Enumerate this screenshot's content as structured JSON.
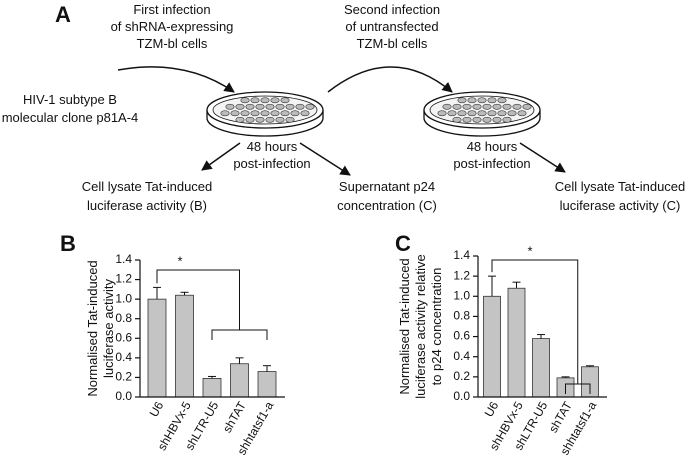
{
  "panel_a": {
    "label": "A",
    "first_infection": [
      "First infection",
      "of shRNA-expressing",
      "TZM-bl cells"
    ],
    "second_infection": [
      "Second infection",
      "of untransfected",
      "TZM-bl cells"
    ],
    "source": [
      "HIV-1 subtype B",
      "molecular clone p81A-4"
    ],
    "time_1": [
      "48 hours",
      "post-infection"
    ],
    "time_2": [
      "48 hours",
      "post-infection"
    ],
    "outputs": [
      [
        "Cell lysate Tat-induced",
        "luciferase activity (B)"
      ],
      [
        "Supernatant p24",
        "concentration (C)"
      ],
      [
        "Cell lysate Tat-induced",
        "luciferase activity (C)"
      ]
    ]
  },
  "chart_data": [
    {
      "type": "bar",
      "panel": "B",
      "ylabel": [
        "Normalised Tat-induced",
        "luciferase activity"
      ],
      "categories": [
        "U6",
        "shHBVx-5",
        "shLTR-U5",
        "shTAT",
        "shhtatsf1-a"
      ],
      "values": [
        1.0,
        1.04,
        0.19,
        0.34,
        0.26
      ],
      "errors": [
        0.12,
        0.03,
        0.02,
        0.06,
        0.06
      ],
      "color": "#c4c4c4",
      "ylim": [
        0,
        1.4
      ],
      "yticks": [
        {
          "value": 0,
          "label": "0.0"
        },
        0.2,
        0.4,
        0.6,
        0.8,
        {
          "value": 1,
          "label": "1.0"
        },
        1.2,
        1.4
      ],
      "significance": "*"
    },
    {
      "type": "bar",
      "panel": "C",
      "ylabel": [
        "Normalised Tat-induced",
        "luciferase activity relative",
        "to p24 concentration"
      ],
      "categories": [
        "U6",
        "shHBVx-5",
        "shLTR-U5",
        "shTAT",
        "shhtatsf1-a"
      ],
      "values": [
        1.0,
        1.08,
        0.58,
        0.19,
        0.3
      ],
      "errors": [
        0.2,
        0.06,
        0.04,
        0.01,
        0.01
      ],
      "color": "#c4c4c4",
      "ylim": [
        0,
        1.4
      ],
      "yticks": [
        {
          "value": 0,
          "label": "0.0"
        },
        0.2,
        0.4,
        0.6,
        0.8,
        {
          "value": 1,
          "label": "1.0"
        },
        1.2,
        1.4
      ],
      "significance": "*"
    }
  ]
}
